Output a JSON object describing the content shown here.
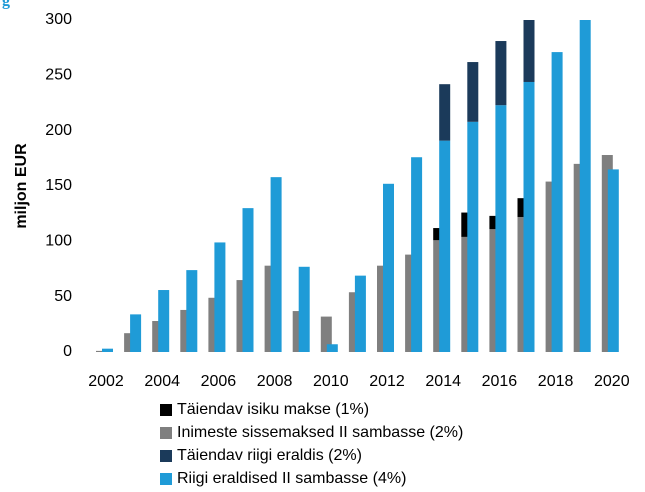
{
  "chart_data": {
    "type": "bar",
    "title": "g",
    "y_label": "miljon EUR",
    "categories": [
      "2002",
      null,
      "2004",
      null,
      "2006",
      null,
      "2008",
      null,
      "2010",
      null,
      "2012",
      null,
      "2014",
      null,
      "2016",
      null,
      "2018",
      null,
      "2020"
    ],
    "series": [
      {
        "name": "Täiendav isiku makse (1%)",
        "color": "#000000",
        "stack_on": 1,
        "values": [
          null,
          null,
          null,
          null,
          null,
          null,
          null,
          null,
          null,
          null,
          null,
          null,
          11,
          22,
          12,
          17,
          null,
          null,
          null
        ]
      },
      {
        "name": "Inimeste sissemaksed II sambasse (2%)",
        "color": "#7f7f7f",
        "values": [
          1,
          17,
          28,
          38,
          49,
          65,
          78,
          37,
          32,
          54,
          78,
          88,
          101,
          104,
          111,
          122,
          154,
          170,
          178
        ]
      },
      {
        "name": "Täiendav riigi eraldis (2%)",
        "color": "#1b3a5a",
        "stack_on": 3,
        "values": [
          null,
          null,
          null,
          null,
          null,
          null,
          null,
          null,
          null,
          null,
          null,
          null,
          51,
          54,
          58,
          56,
          null,
          null,
          null
        ]
      },
      {
        "name": "Riigi eraldised II sambasse (4%)",
        "color": "#1f9bd7",
        "values": [
          3,
          34,
          56,
          74,
          99,
          130,
          158,
          77,
          7,
          69,
          152,
          176,
          191,
          208,
          223,
          244,
          271,
          300,
          165
        ]
      }
    ],
    "ylim": [
      0,
      300
    ],
    "yticks": [
      0,
      50,
      100,
      150,
      200,
      250,
      300
    ],
    "grid": false
  }
}
